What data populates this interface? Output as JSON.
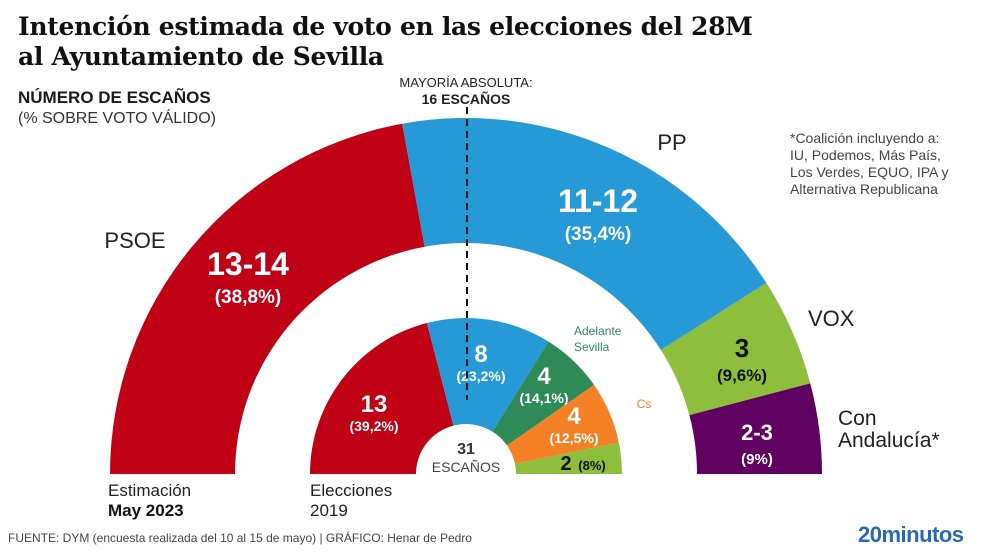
{
  "header": {
    "title_line1": "Intención estimada de voto en las elecciones del 28M",
    "title_line2": "al Ayuntamiento de Sevilla",
    "subtitle": "NÚMERO DE ESCAÑOS",
    "subnote": "(% SOBRE VOTO VÁLIDO)"
  },
  "majority": {
    "line1": "MAYORÍA ABSOLUTA:",
    "line2": "16 ESCAÑOS"
  },
  "footnote": [
    "*Coalición incluyendo a:",
    "IU, Podemos, Más País,",
    "Los Verdes, EQUO, IPA y",
    "Alternativa Republicana"
  ],
  "footer": {
    "source": "FUENTE: DYM (encuesta realizada del 10 al 15 de mayo)  |  GRÁFICO: Henar de Pedro",
    "logo": "20minutos"
  },
  "chart_data": [
    {
      "type": "pie",
      "subtype": "parliament-semicircle",
      "ring": "outer",
      "label_line1": "Estimación",
      "label_line2": "May 2023",
      "total_seats": 31,
      "series": [
        {
          "name": "PSOE",
          "seats": "13-14",
          "seats_mid": 13.5,
          "pct": "38,8%",
          "color": "#c00014",
          "label_color": "#ffffff"
        },
        {
          "name": "PP",
          "seats": "11-12",
          "seats_mid": 11.5,
          "pct": "35,4%",
          "color": "#259ad6",
          "label_color": "#ffffff"
        },
        {
          "name": "VOX",
          "seats": "3",
          "seats_mid": 3,
          "pct": "9,6%",
          "color": "#8dbe3c",
          "label_color": "#111111"
        },
        {
          "name": "Con Andalucía*",
          "seats": "2-3",
          "seats_mid": 2.5,
          "pct": "9%",
          "color": "#600061",
          "label_color": "#ffffff"
        }
      ]
    },
    {
      "type": "pie",
      "subtype": "parliament-semicircle",
      "ring": "inner",
      "label_line1": "Elecciones",
      "label_line2": "2019",
      "center_line1": "31",
      "center_line2": "ESCAÑOS",
      "total_seats": 31,
      "series": [
        {
          "name": "PSOE",
          "seats": "13",
          "seats_mid": 13,
          "pct": "39,2%",
          "color": "#c00014",
          "label_color": "#ffffff"
        },
        {
          "name": "PP",
          "seats": "8",
          "seats_mid": 8,
          "pct": "23,2%",
          "color": "#259ad6",
          "label_color": "#ffffff"
        },
        {
          "name": "Adelante Sevilla",
          "seats": "4",
          "seats_mid": 4,
          "pct": "14,1%",
          "color": "#2e8b57",
          "label_color": "#ffffff"
        },
        {
          "name": "Cs",
          "seats": "4",
          "seats_mid": 4,
          "pct": "12,5%",
          "color": "#f58025",
          "label_color": "#ffffff"
        },
        {
          "name": "VOX",
          "seats": "2",
          "seats_mid": 2,
          "pct": "8%",
          "color": "#8dbe3c",
          "label_color": "#111111"
        }
      ]
    }
  ]
}
